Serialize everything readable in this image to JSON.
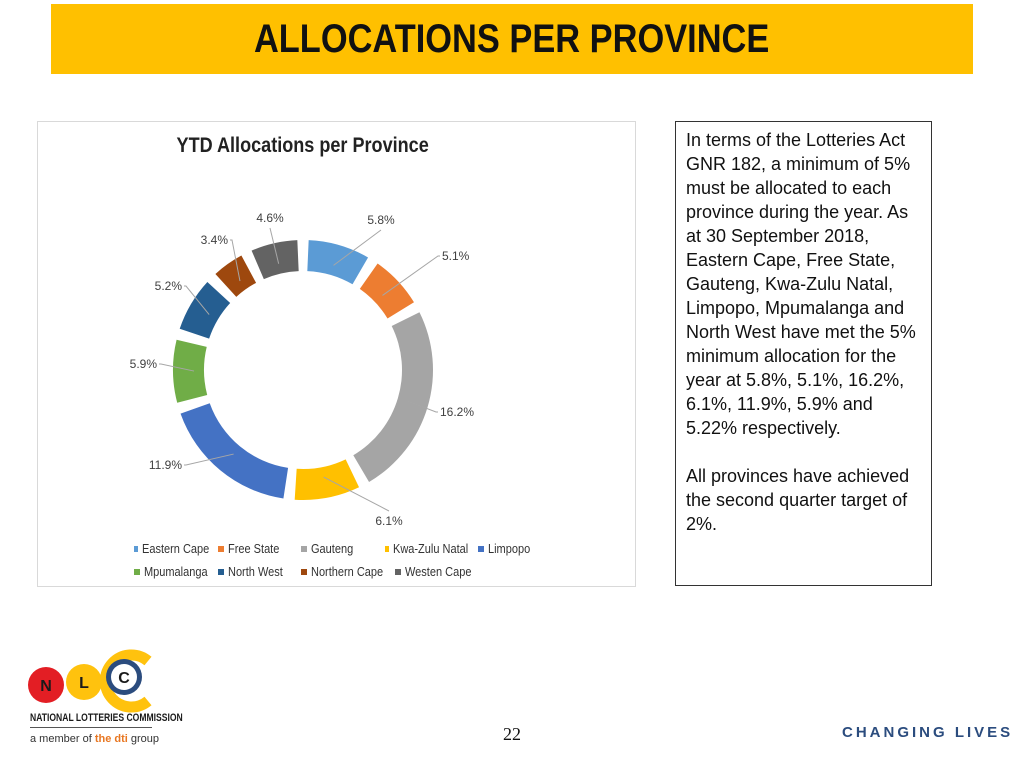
{
  "slide": {
    "title": "ALLOCATIONS PER PROVINCE",
    "page_number": "22",
    "tagline": "CHANGING LIVES"
  },
  "text_box": {
    "paragraph1": "In terms of the Lotteries Act GNR 182, a minimum of 5% must be allocated to each province during the year. As at 30 September 2018, Eastern Cape, Free State, Gauteng, Kwa-Zulu Natal, Limpopo, Mpumalanga and North West have met the 5% minimum allocation for the year at 5.8%, 5.1%, 16.2%, 6.1%, 11.9%, 5.9% and 5.22% respectively.",
    "paragraph2": "All provinces have achieved the second quarter target of 2%."
  },
  "logo": {
    "letters": [
      "N",
      "L",
      "C"
    ],
    "name": "NATIONAL LOTTERIES COMMISSION",
    "sub_prefix": "a member of ",
    "sub_highlight": "the dti",
    "sub_suffix": " group",
    "colors": {
      "red": "#E31E24",
      "yellow": "#FFC20E",
      "blue": "#2B4C7E",
      "orange": "#E87722"
    }
  },
  "chart_data": {
    "type": "doughnut",
    "title": "YTD Allocations per Province",
    "unit": "%",
    "legend_position": "bottom",
    "series": [
      {
        "name": "Eastern Cape",
        "value": 5.8,
        "label": "5.8%",
        "color": "#5B9BD5"
      },
      {
        "name": "Free State",
        "value": 5.1,
        "label": "5.1%",
        "color": "#ED7D31"
      },
      {
        "name": "Gauteng",
        "value": 16.2,
        "label": "16.2%",
        "color": "#A5A5A5"
      },
      {
        "name": "Kwa-Zulu Natal",
        "value": 6.1,
        "label": "6.1%",
        "color": "#FFC000"
      },
      {
        "name": "Limpopo",
        "value": 11.9,
        "label": "11.9%",
        "color": "#4472C4"
      },
      {
        "name": "Mpumalanga",
        "value": 5.9,
        "label": "5.9%",
        "color": "#70AD47"
      },
      {
        "name": "North West",
        "value": 5.2,
        "label": "5.2%",
        "color": "#255E91"
      },
      {
        "name": "Northern Cape",
        "value": 3.4,
        "label": "3.4%",
        "color": "#9E480E"
      },
      {
        "name": "Westen Cape",
        "value": 4.6,
        "label": "4.6%",
        "color": "#636363"
      }
    ]
  }
}
